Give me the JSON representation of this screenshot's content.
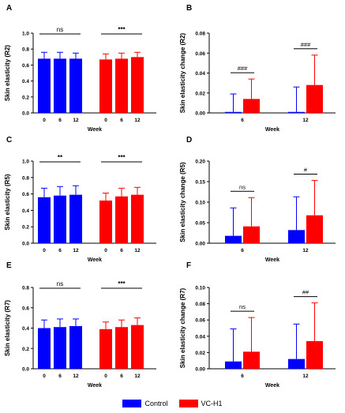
{
  "colors": {
    "control": "#0000ff",
    "vch1": "#ff0000"
  },
  "legend": {
    "control": "Control",
    "vch1": "VC-H1"
  },
  "chart_data": [
    {
      "panel": "A",
      "type": "bar",
      "ylabel": "Skin elasticity (R2)",
      "xlabel": "Week",
      "ylim": [
        0,
        1.0
      ],
      "yticks": [
        0.0,
        0.2,
        0.4,
        0.6,
        0.8,
        1.0
      ],
      "ytick_labels": [
        "0.0",
        "0.2",
        "0.4",
        "0.6",
        "0.8",
        "1.0"
      ],
      "categories": [
        "0",
        "6",
        "12"
      ],
      "series": [
        {
          "name": "Control",
          "values": [
            0.68,
            0.68,
            0.68
          ],
          "errors": [
            0.08,
            0.08,
            0.07
          ]
        },
        {
          "name": "VC-H1",
          "values": [
            0.67,
            0.68,
            0.7
          ],
          "errors": [
            0.07,
            0.07,
            0.06
          ]
        }
      ],
      "annotations": [
        {
          "group": 0,
          "text": "ns"
        },
        {
          "group": 1,
          "text": "***"
        }
      ]
    },
    {
      "panel": "B",
      "type": "bar",
      "ylabel": "Skin elasticity change (R2)",
      "xlabel": "Week",
      "ylim": [
        0,
        0.08
      ],
      "yticks": [
        0,
        0.02,
        0.04,
        0.06,
        0.08
      ],
      "ytick_labels": [
        "0.00",
        "0.02",
        "0.04",
        "0.06",
        "0.08"
      ],
      "categories": [
        "6",
        "12"
      ],
      "series": [
        {
          "name": "Control",
          "values": [
            0.001,
            0.001
          ],
          "errors": [
            0.018,
            0.025
          ]
        },
        {
          "name": "VC-H1",
          "values": [
            0.014,
            0.028
          ],
          "errors": [
            0.02,
            0.03
          ]
        }
      ],
      "annotations": [
        {
          "group": 0,
          "text": "###"
        },
        {
          "group": 1,
          "text": "###"
        }
      ]
    },
    {
      "panel": "C",
      "type": "bar",
      "ylabel": "Skin elasticity (R5)",
      "xlabel": "Week",
      "ylim": [
        0,
        1.0
      ],
      "yticks": [
        0.0,
        0.2,
        0.4,
        0.6,
        0.8,
        1.0
      ],
      "ytick_labels": [
        "0.0",
        "0.2",
        "0.4",
        "0.6",
        "0.8",
        "1.0"
      ],
      "categories": [
        "0",
        "6",
        "12"
      ],
      "series": [
        {
          "name": "Control",
          "values": [
            0.56,
            0.58,
            0.59
          ],
          "errors": [
            0.11,
            0.11,
            0.11
          ]
        },
        {
          "name": "VC-H1",
          "values": [
            0.52,
            0.57,
            0.59
          ],
          "errors": [
            0.09,
            0.1,
            0.09
          ]
        }
      ],
      "annotations": [
        {
          "group": 0,
          "text": "**"
        },
        {
          "group": 1,
          "text": "***"
        }
      ]
    },
    {
      "panel": "D",
      "type": "bar",
      "ylabel": "Skin elasticity change (R5)",
      "xlabel": "Week",
      "ylim": [
        0,
        0.2
      ],
      "yticks": [
        0,
        0.05,
        0.1,
        0.15,
        0.2
      ],
      "ytick_labels": [
        "0.00",
        "0.05",
        "0.10",
        "0.15",
        "0.20"
      ],
      "categories": [
        "6",
        "12"
      ],
      "series": [
        {
          "name": "Control",
          "values": [
            0.018,
            0.032
          ],
          "errors": [
            0.068,
            0.081
          ]
        },
        {
          "name": "VC-H1",
          "values": [
            0.041,
            0.068
          ],
          "errors": [
            0.07,
            0.085
          ]
        }
      ],
      "annotations": [
        {
          "group": 0,
          "text": "ns"
        },
        {
          "group": 1,
          "text": "#"
        }
      ]
    },
    {
      "panel": "E",
      "type": "bar",
      "ylabel": "Skin elasticity (R7)",
      "xlabel": "Week",
      "ylim": [
        0,
        0.8
      ],
      "yticks": [
        0.0,
        0.2,
        0.4,
        0.6,
        0.8
      ],
      "ytick_labels": [
        "0.0",
        "0.2",
        "0.4",
        "0.6",
        "0.8"
      ],
      "categories": [
        "0",
        "6",
        "12"
      ],
      "series": [
        {
          "name": "Control",
          "values": [
            0.4,
            0.41,
            0.42
          ],
          "errors": [
            0.08,
            0.08,
            0.07
          ]
        },
        {
          "name": "VC-H1",
          "values": [
            0.39,
            0.41,
            0.43
          ],
          "errors": [
            0.07,
            0.07,
            0.07
          ]
        }
      ],
      "annotations": [
        {
          "group": 0,
          "text": "ns"
        },
        {
          "group": 1,
          "text": "***"
        }
      ]
    },
    {
      "panel": "F",
      "type": "bar",
      "ylabel": "Skin elasticity change (R7)",
      "xlabel": "Week",
      "ylim": [
        0,
        0.1
      ],
      "yticks": [
        0,
        0.02,
        0.04,
        0.06,
        0.08,
        0.1
      ],
      "ytick_labels": [
        "0.00",
        "0.02",
        "0.04",
        "0.06",
        "0.08",
        "0.10"
      ],
      "categories": [
        "6",
        "12"
      ],
      "series": [
        {
          "name": "Control",
          "values": [
            0.009,
            0.012
          ],
          "errors": [
            0.04,
            0.043
          ]
        },
        {
          "name": "VC-H1",
          "values": [
            0.021,
            0.034
          ],
          "errors": [
            0.042,
            0.047
          ]
        }
      ],
      "annotations": [
        {
          "group": 0,
          "text": "ns"
        },
        {
          "group": 1,
          "text": "##"
        }
      ]
    }
  ]
}
